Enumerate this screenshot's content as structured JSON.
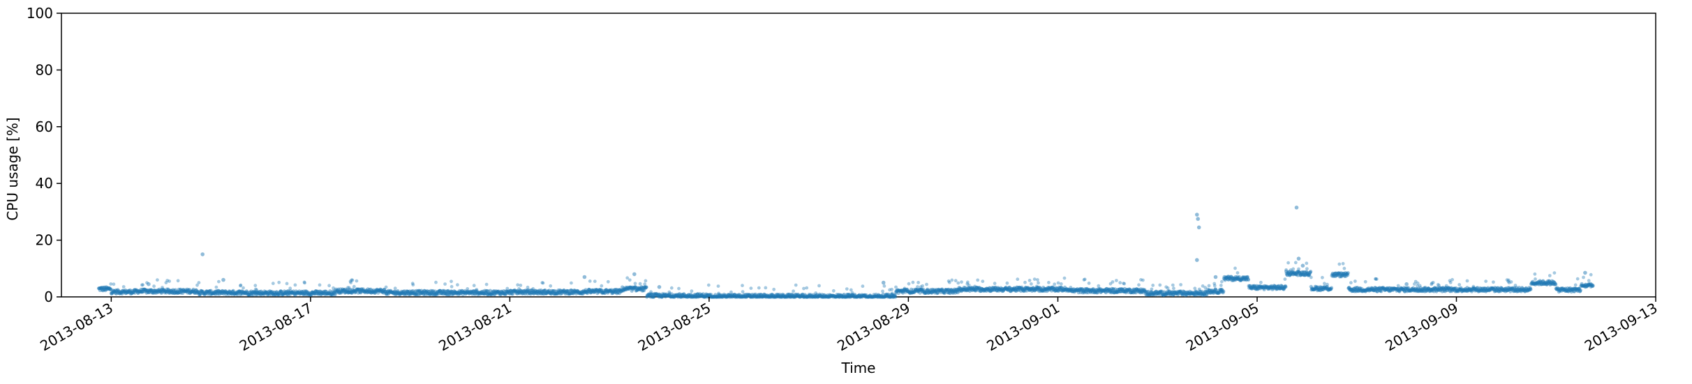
{
  "chart_data": {
    "type": "scatter",
    "title": "",
    "xlabel": "Time",
    "ylabel": "CPU usage [%]",
    "xlim": [
      "2013-08-12T00:00",
      "2013-09-13T00:00"
    ],
    "ylim": [
      0,
      100
    ],
    "grid": false,
    "legend": "none",
    "marker_color": "#1f77b4",
    "marker_alpha": 0.45,
    "x_ticks": [
      "2013-08-13",
      "2013-08-17",
      "2013-08-21",
      "2013-08-25",
      "2013-08-29",
      "2013-09-01",
      "2013-09-05",
      "2013-09-09",
      "2013-09-13"
    ],
    "y_ticks": [
      "0",
      "20",
      "40",
      "60",
      "80",
      "100"
    ],
    "baseline_segments": [
      {
        "start": "2013-08-12T18:00",
        "end": "2013-08-13T00:00",
        "level": 2.8
      },
      {
        "start": "2013-08-13T00:00",
        "end": "2013-08-13T12:00",
        "level": 1.8
      },
      {
        "start": "2013-08-13T12:00",
        "end": "2013-08-14T18:00",
        "level": 2.0
      },
      {
        "start": "2013-08-14T18:00",
        "end": "2013-08-15T18:00",
        "level": 1.5
      },
      {
        "start": "2013-08-15T18:00",
        "end": "2013-08-17T12:00",
        "level": 1.4
      },
      {
        "start": "2013-08-17T12:00",
        "end": "2013-08-18T12:00",
        "level": 2.1
      },
      {
        "start": "2013-08-18T12:00",
        "end": "2013-08-21T00:00",
        "level": 1.5
      },
      {
        "start": "2013-08-21T00:00",
        "end": "2013-08-22T12:00",
        "level": 1.7
      },
      {
        "start": "2013-08-22T12:00",
        "end": "2013-08-23T06:00",
        "level": 1.9
      },
      {
        "start": "2013-08-23T06:00",
        "end": "2013-08-23T18:00",
        "level": 2.8
      },
      {
        "start": "2013-08-23T18:00",
        "end": "2013-08-25T00:00",
        "level": 0.4
      },
      {
        "start": "2013-08-25T00:00",
        "end": "2013-08-28T18:00",
        "level": 0.2
      },
      {
        "start": "2013-08-28T18:00",
        "end": "2013-08-30T00:00",
        "level": 2.0
      },
      {
        "start": "2013-08-30T00:00",
        "end": "2013-09-01T06:00",
        "level": 2.7
      },
      {
        "start": "2013-09-01T06:00",
        "end": "2013-09-02T18:00",
        "level": 2.2
      },
      {
        "start": "2013-09-02T18:00",
        "end": "2013-09-04T00:00",
        "level": 1.3
      },
      {
        "start": "2013-09-04T00:00",
        "end": "2013-09-04T08:00",
        "level": 2.0
      },
      {
        "start": "2013-09-04T08:00",
        "end": "2013-09-04T20:00",
        "level": 6.5
      },
      {
        "start": "2013-09-04T20:00",
        "end": "2013-09-05T14:00",
        "level": 3.3
      },
      {
        "start": "2013-09-05T14:00",
        "end": "2013-09-06T02:00",
        "level": 8.3
      },
      {
        "start": "2013-09-06T02:00",
        "end": "2013-09-06T12:00",
        "level": 3.0
      },
      {
        "start": "2013-09-06T12:00",
        "end": "2013-09-06T20:00",
        "level": 7.8
      },
      {
        "start": "2013-09-06T20:00",
        "end": "2013-09-10T12:00",
        "level": 2.6
      },
      {
        "start": "2013-09-10T12:00",
        "end": "2013-09-11T00:00",
        "level": 5.0
      },
      {
        "start": "2013-09-11T00:00",
        "end": "2013-09-11T12:00",
        "level": 2.5
      },
      {
        "start": "2013-09-11T12:00",
        "end": "2013-09-11T18:00",
        "level": 4.0
      }
    ],
    "outliers": [
      {
        "x": "2013-08-14T20:00",
        "y": 15.0
      },
      {
        "x": "2013-08-15T06:00",
        "y": 6.0
      },
      {
        "x": "2013-08-13T18:00",
        "y": 4.5
      },
      {
        "x": "2013-08-22T12:00",
        "y": 7.0
      },
      {
        "x": "2013-08-23T12:00",
        "y": 8.0
      },
      {
        "x": "2013-08-24T00:00",
        "y": 3.5
      },
      {
        "x": "2013-08-28T12:00",
        "y": 5.0
      },
      {
        "x": "2013-09-03T19:00",
        "y": 29.0
      },
      {
        "x": "2013-09-03T19:30",
        "y": 27.5
      },
      {
        "x": "2013-09-03T20:00",
        "y": 24.5
      },
      {
        "x": "2013-09-03T19:00",
        "y": 13.0
      },
      {
        "x": "2013-09-04T04:00",
        "y": 7.0
      },
      {
        "x": "2013-09-05T19:00",
        "y": 31.5
      },
      {
        "x": "2013-09-05T20:00",
        "y": 13.5
      },
      {
        "x": "2013-09-05T22:00",
        "y": 11.0
      },
      {
        "x": "2013-09-11T14:00",
        "y": 8.5
      },
      {
        "x": "2013-09-08T00:00",
        "y": 4.5
      }
    ]
  }
}
